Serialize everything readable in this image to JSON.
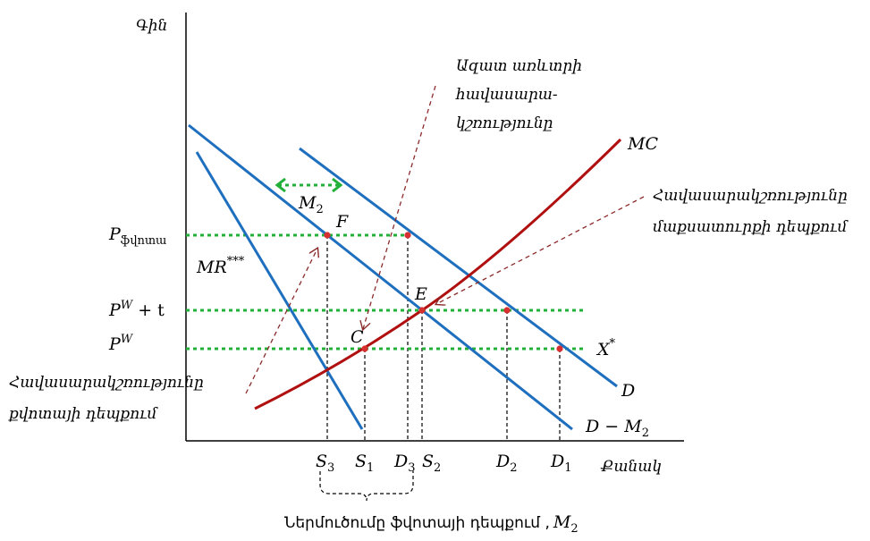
{
  "axes": {
    "y_label": "Գին",
    "x_label": "Քանակ"
  },
  "price_labels": {
    "p_quota_base": "P",
    "p_quota_sub": "ֆվոտա",
    "pw_t_base": "P",
    "pw_t_sup": "W",
    "pw_t_rest": " + t",
    "pw_base": "P",
    "pw_sup": "W"
  },
  "quantity_labels": [
    {
      "base": "S",
      "sub": "3"
    },
    {
      "base": "S",
      "sub": "1"
    },
    {
      "base": "D",
      "sub": "3"
    },
    {
      "base": "S",
      "sub": "2"
    },
    {
      "base": "D",
      "sub": "2"
    },
    {
      "base": "D",
      "sub": "1"
    }
  ],
  "curve_labels": {
    "mc": "MC",
    "d": "D",
    "d_minus_m2_base": "D − M",
    "d_minus_m2_sub": "2",
    "mr_base": "MR",
    "mr_sup": "***",
    "x_base": "X",
    "x_sup": "*",
    "m2_base": "M",
    "m2_sub": "2"
  },
  "point_labels": {
    "f": "F",
    "e": "E",
    "c": "C"
  },
  "annotations": {
    "free_trade": [
      "Ազատ առևտրի",
      "հավասարա-",
      "կշռությունը"
    ],
    "monopoly": [
      "Հավասարակշռությունը",
      "մաքսատուրքի դեպքում"
    ],
    "quota_eq": [
      "Հավասարակշռությունը",
      "քվոտայի դեպքում"
    ],
    "imports_note": "Ներմուծումը ֆվոտայի դեպքում ,",
    "imports_note_var_base": "M",
    "imports_note_var_sub": "2"
  },
  "colors": {
    "demand_blue": "#1f6fbf",
    "mc_red": "#b01010",
    "guide_green": "#22b03a",
    "annot_arrow": "#8b2a2a",
    "point_red": "#d63030"
  }
}
